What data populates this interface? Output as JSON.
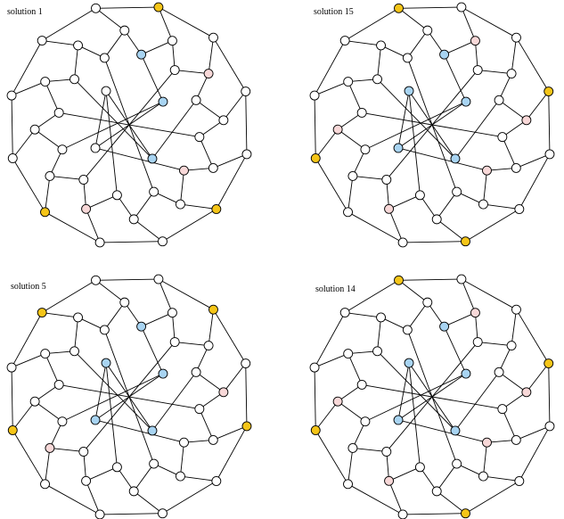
{
  "colors": {
    "none": "#ffffff",
    "gold": "#f5c518",
    "blue": "#a8d4f2",
    "pink": "#f8d8d8",
    "edge": "#000000"
  },
  "graph": {
    "nodes": [
      {
        "id": 0
      },
      {
        "id": 1
      },
      {
        "id": 2
      },
      {
        "id": 3
      },
      {
        "id": 4
      },
      {
        "id": 5
      },
      {
        "id": 6
      },
      {
        "id": 7
      },
      {
        "id": 8
      },
      {
        "id": 9
      },
      {
        "id": 10
      },
      {
        "id": 11
      },
      {
        "id": 12
      },
      {
        "id": 13
      },
      {
        "id": 14
      },
      {
        "id": 15
      },
      {
        "id": 16
      },
      {
        "id": 17
      },
      {
        "id": 18
      },
      {
        "id": 19
      },
      {
        "id": 20
      },
      {
        "id": 21
      },
      {
        "id": 22
      },
      {
        "id": 23
      },
      {
        "id": 24
      },
      {
        "id": 25
      },
      {
        "id": 26
      },
      {
        "id": 27
      },
      {
        "id": 28
      },
      {
        "id": 29
      },
      {
        "id": 30
      },
      {
        "id": 31
      },
      {
        "id": 32
      },
      {
        "id": 33
      },
      {
        "id": 34
      },
      {
        "id": 35
      },
      {
        "id": 36
      },
      {
        "id": 37
      },
      {
        "id": 38
      },
      {
        "id": 39
      }
    ],
    "edges": [
      [
        0,
        1
      ],
      [
        1,
        2
      ],
      [
        2,
        3
      ],
      [
        3,
        4
      ],
      [
        4,
        5
      ],
      [
        5,
        6
      ],
      [
        6,
        7
      ],
      [
        7,
        8
      ],
      [
        8,
        9
      ],
      [
        9,
        10
      ],
      [
        10,
        11
      ],
      [
        11,
        0
      ],
      [
        0,
        12
      ],
      [
        1,
        13
      ],
      [
        2,
        14
      ],
      [
        3,
        15
      ],
      [
        4,
        16
      ],
      [
        5,
        17
      ],
      [
        6,
        18
      ],
      [
        7,
        19
      ],
      [
        8,
        20
      ],
      [
        9,
        21
      ],
      [
        10,
        22
      ],
      [
        11,
        23
      ],
      [
        12,
        24
      ],
      [
        24,
        13
      ],
      [
        13,
        25
      ],
      [
        25,
        14
      ],
      [
        14,
        26
      ],
      [
        26,
        15
      ],
      [
        15,
        27
      ],
      [
        27,
        16
      ],
      [
        16,
        28
      ],
      [
        28,
        17
      ],
      [
        17,
        29
      ],
      [
        29,
        18
      ],
      [
        18,
        30
      ],
      [
        30,
        19
      ],
      [
        19,
        31
      ],
      [
        31,
        20
      ],
      [
        20,
        32
      ],
      [
        32,
        21
      ],
      [
        21,
        33
      ],
      [
        33,
        22
      ],
      [
        22,
        34
      ],
      [
        34,
        23
      ],
      [
        23,
        35
      ],
      [
        35,
        12
      ],
      [
        24,
        36
      ],
      [
        26,
        37
      ],
      [
        28,
        38
      ],
      [
        30,
        39
      ],
      [
        25,
        31
      ],
      [
        27,
        33
      ],
      [
        29,
        35
      ],
      [
        32,
        36
      ],
      [
        34,
        37
      ],
      [
        36,
        38
      ],
      [
        37,
        39
      ],
      [
        38,
        39
      ]
    ]
  },
  "panels": [
    {
      "title": "solution 1",
      "node_colors": [
        "none",
        "gold",
        "none",
        "none",
        "none",
        "gold",
        "none",
        "none",
        "gold",
        "none",
        "none",
        "none",
        "none",
        "none",
        "pink",
        "none",
        "none",
        "none",
        "none",
        "pink",
        "none",
        "none",
        "none",
        "none",
        "blue",
        "none",
        "none",
        "none",
        "pink",
        "none",
        "none",
        "none",
        "none",
        "none",
        "none",
        "none",
        "blue",
        "blue",
        "none",
        "none"
      ]
    },
    {
      "title": "solution 15",
      "node_colors": [
        "gold",
        "none",
        "none",
        "gold",
        "none",
        "none",
        "gold",
        "none",
        "none",
        "gold",
        "none",
        "none",
        "none",
        "pink",
        "none",
        "pink",
        "none",
        "none",
        "none",
        "pink",
        "none",
        "pink",
        "none",
        "none",
        "blue",
        "none",
        "none",
        "none",
        "pink",
        "none",
        "none",
        "none",
        "none",
        "none",
        "none",
        "none",
        "blue",
        "blue",
        "blue",
        "blue"
      ]
    },
    {
      "title": "solution 5",
      "node_colors": [
        "none",
        "none",
        "gold",
        "none",
        "gold",
        "none",
        "none",
        "none",
        "none",
        "gold",
        "none",
        "gold",
        "none",
        "none",
        "none",
        "pink",
        "none",
        "none",
        "none",
        "none",
        "pink",
        "none",
        "none",
        "none",
        "blue",
        "none",
        "none",
        "none",
        "none",
        "none",
        "none",
        "none",
        "none",
        "none",
        "none",
        "none",
        "blue",
        "blue",
        "blue",
        "blue"
      ]
    },
    {
      "title": "solution 14",
      "node_colors": [
        "gold",
        "none",
        "none",
        "gold",
        "none",
        "none",
        "gold",
        "none",
        "none",
        "gold",
        "none",
        "none",
        "none",
        "pink",
        "none",
        "pink",
        "none",
        "none",
        "none",
        "pink",
        "none",
        "pink",
        "none",
        "none",
        "blue",
        "none",
        "none",
        "none",
        "pink",
        "none",
        "none",
        "none",
        "none",
        "none",
        "none",
        "none",
        "blue",
        "blue",
        "blue",
        "blue"
      ]
    }
  ]
}
